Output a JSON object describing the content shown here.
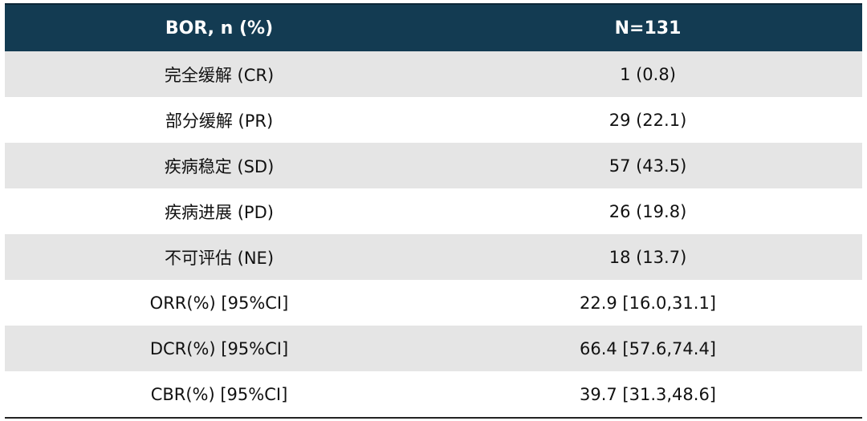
{
  "table": {
    "header": [
      "BOR, n (%)",
      "N=131"
    ],
    "rows": [
      [
        "完全缓解 (CR)",
        "1 (0.8)"
      ],
      [
        "部分缓解 (PR)",
        "29 (22.1)"
      ],
      [
        "疾病稳定 (SD)",
        "57 (43.5)"
      ],
      [
        "疾病进展 (PD)",
        "26 (19.8)"
      ],
      [
        "不可评估 (NE)",
        "18 (13.7)"
      ],
      [
        "ORR(%) [95%CI]",
        "22.9 [16.0,31.1]"
      ],
      [
        "DCR(%) [95%CI]",
        "66.4 [57.6,74.4]"
      ],
      [
        "CBR(%) [95%CI]",
        "39.7 [31.3,48.6]"
      ]
    ]
  }
}
